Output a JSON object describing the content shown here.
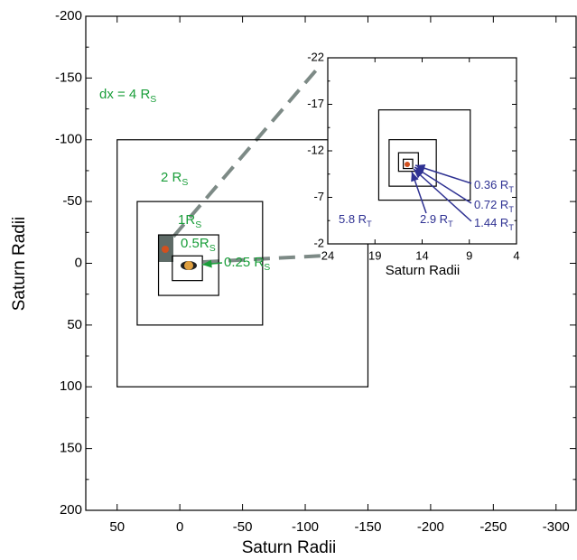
{
  "chart_data": [
    {
      "type": "nested-grid",
      "xlabel": "Saturn Radii",
      "ylabel": "Saturn Radii",
      "xlim": [
        75,
        -316
      ],
      "ylim": [
        -200,
        200
      ],
      "xticks": [
        50,
        0,
        -50,
        -100,
        -150,
        -200,
        -250,
        -300
      ],
      "yticks": [
        -200,
        -150,
        -100,
        -50,
        0,
        50,
        100,
        150,
        200
      ],
      "color": "#1a9e3a",
      "boxes": [
        {
          "x": [
            50,
            -150
          ],
          "y": [
            -100,
            100
          ]
        },
        {
          "x": [
            34,
            -66
          ],
          "y": [
            -50,
            50
          ]
        },
        {
          "x": [
            17,
            -31
          ],
          "y": [
            -23,
            26
          ]
        },
        {
          "x": [
            6,
            -18
          ],
          "y": [
            -6,
            14
          ]
        }
      ],
      "annotations": [
        {
          "text": "dx = 4 R",
          "sub": "S"
        },
        {
          "text": "2 R",
          "sub": "S"
        },
        {
          "text": "1R",
          "sub": "S"
        },
        {
          "text": "0.5R",
          "sub": "S"
        },
        {
          "text": "0.25 R",
          "sub": "S"
        }
      ]
    },
    {
      "type": "nested-grid",
      "xlabel": "Saturn Radii",
      "xlim": [
        24,
        4
      ],
      "ylim": [
        -22,
        -2
      ],
      "xticks": [
        24,
        19,
        14,
        9,
        4
      ],
      "yticks": [
        -22,
        -17,
        -12,
        -7,
        -2
      ],
      "color": "#2e3192",
      "boxes": [
        {
          "x": [
            18.6,
            8.9
          ],
          "y": [
            -16.4,
            -6.7
          ]
        },
        {
          "x": [
            17.5,
            12.5
          ],
          "y": [
            -13.2,
            -8.2
          ]
        },
        {
          "x": [
            16.5,
            14.4
          ],
          "y": [
            -11.8,
            -9.8
          ]
        },
        {
          "x": [
            16,
            15
          ],
          "y": [
            -11.1,
            -10.1
          ]
        }
      ],
      "annotations": [
        {
          "text": "0.36 R",
          "sub": "T"
        },
        {
          "text": "0.72 R",
          "sub": "T"
        },
        {
          "text": "1.44 R",
          "sub": "T"
        },
        {
          "text": "2.9 R",
          "sub": "T"
        },
        {
          "text": "5.8 R",
          "sub": "T"
        }
      ]
    }
  ]
}
